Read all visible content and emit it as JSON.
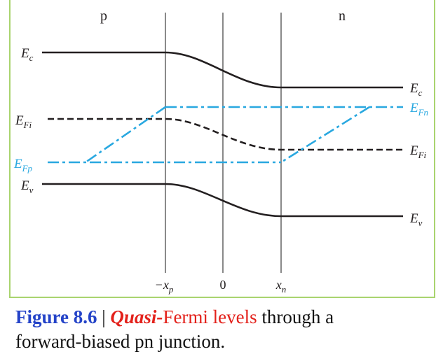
{
  "regions": {
    "p": "p",
    "n": "n"
  },
  "levels": {
    "ec": {
      "symbol": "E",
      "sub": "c"
    },
    "efi": {
      "symbol": "E",
      "sub": "Fi"
    },
    "efn": {
      "symbol": "E",
      "sub": "Fn"
    },
    "efp": {
      "symbol": "E",
      "sub": "Fp"
    },
    "ev": {
      "symbol": "E",
      "sub": "v"
    }
  },
  "axis": {
    "neg_xp": {
      "symbol": "−x",
      "sub": "p"
    },
    "zero": "0",
    "xn": {
      "symbol": "x",
      "sub": "n"
    }
  },
  "caption": {
    "figure_number": "Figure 8.6",
    "separator": " | ",
    "quasi": "Quasi-",
    "fermi_levels": "Fermi levels",
    "line1_rest": " through a",
    "line2": "forward-biased pn junction."
  },
  "colors": {
    "band_line": "#231f20",
    "quasi_fermi": "#29a8e0",
    "frame": "#a9d46f",
    "caption_blue": "#2443c8",
    "caption_red": "#e3211b"
  }
}
